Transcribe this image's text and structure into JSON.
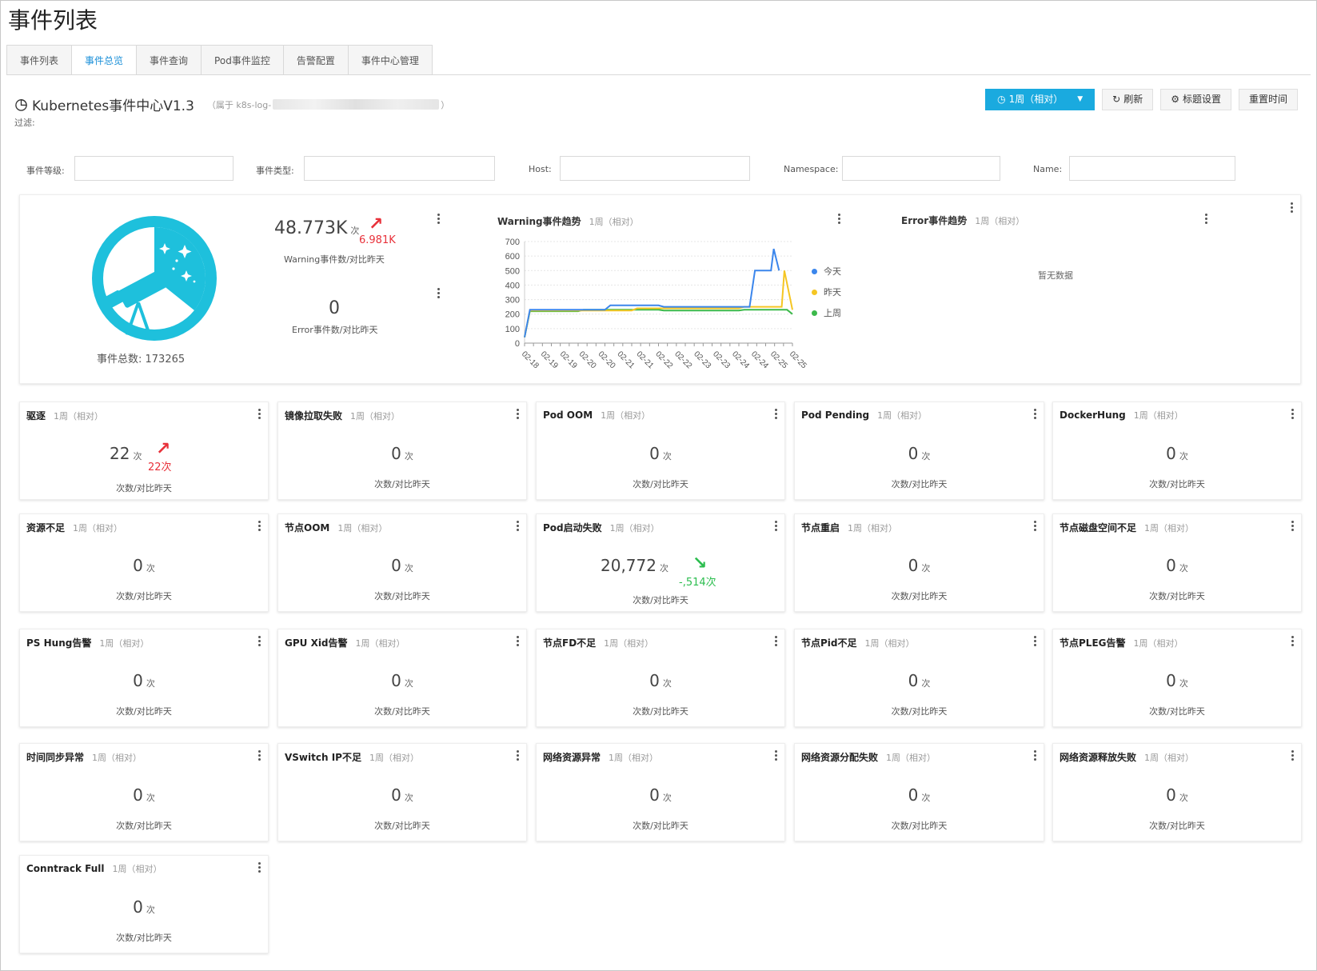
{
  "page_title": "事件列表",
  "tabs": [
    {
      "label": "事件列表",
      "active": false
    },
    {
      "label": "事件总览",
      "active": true
    },
    {
      "label": "事件查询",
      "active": false
    },
    {
      "label": "Pod事件监控",
      "active": false
    },
    {
      "label": "告警配置",
      "active": false
    },
    {
      "label": "事件中心管理",
      "active": false
    }
  ],
  "dashboard": {
    "title": "Kubernetes事件中心V1.3",
    "owner_prefix": "（属于 k8s-log-",
    "owner_suffix": "）",
    "filter_label": "过滤:"
  },
  "toolbar": {
    "time_label": "1周（相对）",
    "refresh_label": "刷新",
    "title_settings_label": "标题设置",
    "reset_time_label": "重置时间"
  },
  "filters": [
    {
      "label": "事件等级:",
      "value": ""
    },
    {
      "label": "事件类型:",
      "value": ""
    },
    {
      "label": "Host:",
      "value": ""
    },
    {
      "label": "Namespace:",
      "value": ""
    },
    {
      "label": "Name:",
      "value": ""
    }
  ],
  "overview": {
    "total_label": "事件总数: 173265",
    "warning_value": "48.773K",
    "warning_unit": "次",
    "warning_delta": "6.981K",
    "warning_caption": "Warning事件数/对比昨天",
    "error_value": "0",
    "error_caption": "Error事件数/对比昨天"
  },
  "warning_chart": {
    "title": "Warning事件趋势",
    "sub": "1周（相对）",
    "legend": [
      {
        "name": "今天",
        "color": "#3b86ec"
      },
      {
        "name": "昨天",
        "color": "#f5c623"
      },
      {
        "name": "上周",
        "color": "#3cb94b"
      }
    ]
  },
  "error_chart": {
    "title": "Error事件趋势",
    "sub": "1周（相对）",
    "empty_text": "暂无数据"
  },
  "chart_data": {
    "type": "line",
    "title": "Warning事件趋势",
    "ylim": [
      0,
      700
    ],
    "yticks": [
      700,
      600,
      500,
      400,
      300,
      200,
      100,
      0
    ],
    "xticks": [
      "02-18",
      "02-19",
      "02-19",
      "02-20",
      "02-20",
      "02-21",
      "02-21",
      "02-22",
      "02-22",
      "02-23",
      "02-23",
      "02-24",
      "02-24",
      "02-25",
      "02-25"
    ],
    "grid": true,
    "legend_position": "right",
    "series": [
      {
        "name": "今天",
        "color": "#3b86ec",
        "x": [
          0,
          0.02,
          0.3,
          0.32,
          0.5,
          0.52,
          0.84,
          0.86,
          0.92,
          0.93,
          0.95
        ],
        "values": [
          40,
          230,
          230,
          260,
          260,
          250,
          250,
          500,
          500,
          650,
          500
        ]
      },
      {
        "name": "昨天",
        "color": "#f5c623",
        "x": [
          0,
          0.02,
          0.4,
          0.42,
          0.8,
          0.82,
          0.96,
          0.97,
          1.0
        ],
        "values": [
          40,
          225,
          225,
          240,
          240,
          250,
          250,
          500,
          230
        ]
      },
      {
        "name": "上周",
        "color": "#3cb94b",
        "x": [
          0,
          0.02,
          0.2,
          0.22,
          0.5,
          0.52,
          0.8,
          0.82,
          0.98,
          1.0
        ],
        "values": [
          40,
          220,
          220,
          230,
          230,
          225,
          225,
          230,
          230,
          200
        ]
      }
    ]
  },
  "cards": [
    {
      "title": "驱逐",
      "sub": "1周（相对）",
      "value": "22",
      "unit": "次",
      "caption": "次数/对比昨天",
      "delta": "22次",
      "dir": "up"
    },
    {
      "title": "镜像拉取失败",
      "sub": "1周（相对）",
      "value": "0",
      "unit": "次",
      "caption": "次数/对比昨天"
    },
    {
      "title": "Pod OOM",
      "sub": "1周（相对）",
      "value": "0",
      "unit": "次",
      "caption": "次数/对比昨天"
    },
    {
      "title": "Pod Pending",
      "sub": "1周（相对）",
      "value": "0",
      "unit": "次",
      "caption": "次数/对比昨天"
    },
    {
      "title": "DockerHung",
      "sub": "1周（相对）",
      "value": "0",
      "unit": "次",
      "caption": "次数/对比昨天"
    },
    {
      "title": "资源不足",
      "sub": "1周（相对）",
      "value": "0",
      "unit": "次",
      "caption": "次数/对比昨天"
    },
    {
      "title": "节点OOM",
      "sub": "1周（相对）",
      "value": "0",
      "unit": "次",
      "caption": "次数/对比昨天"
    },
    {
      "title": "Pod启动失败",
      "sub": "1周（相对）",
      "value": "20,772",
      "unit": "次",
      "caption": "次数/对比昨天",
      "delta": "-,514次",
      "dir": "down"
    },
    {
      "title": "节点重启",
      "sub": "1周（相对）",
      "value": "0",
      "unit": "次",
      "caption": "次数/对比昨天"
    },
    {
      "title": "节点磁盘空间不足",
      "sub": "1周（相对）",
      "value": "0",
      "unit": "次",
      "caption": "次数/对比昨天"
    },
    {
      "title": "PS Hung告警",
      "sub": "1周（相对）",
      "value": "0",
      "unit": "次",
      "caption": "次数/对比昨天"
    },
    {
      "title": "GPU Xid告警",
      "sub": "1周（相对）",
      "value": "0",
      "unit": "次",
      "caption": "次数/对比昨天"
    },
    {
      "title": "节点FD不足",
      "sub": "1周（相对）",
      "value": "0",
      "unit": "次",
      "caption": "次数/对比昨天"
    },
    {
      "title": "节点Pid不足",
      "sub": "1周（相对）",
      "value": "0",
      "unit": "次",
      "caption": "次数/对比昨天"
    },
    {
      "title": "节点PLEG告警",
      "sub": "1周（相对）",
      "value": "0",
      "unit": "次",
      "caption": "次数/对比昨天"
    },
    {
      "title": "时间同步异常",
      "sub": "1周（相对）",
      "value": "0",
      "unit": "次",
      "caption": "次数/对比昨天"
    },
    {
      "title": "VSwitch IP不足",
      "sub": "1周（相对）",
      "value": "0",
      "unit": "次",
      "caption": "次数/对比昨天"
    },
    {
      "title": "网络资源异常",
      "sub": "1周（相对）",
      "value": "0",
      "unit": "次",
      "caption": "次数/对比昨天"
    },
    {
      "title": "网络资源分配失败",
      "sub": "1周（相对）",
      "value": "0",
      "unit": "次",
      "caption": "次数/对比昨天"
    },
    {
      "title": "网络资源释放失败",
      "sub": "1周（相对）",
      "value": "0",
      "unit": "次",
      "caption": "次数/对比昨天"
    },
    {
      "title": "Conntrack Full",
      "sub": "1周（相对）",
      "value": "0",
      "unit": "次",
      "caption": "次数/对比昨天"
    }
  ]
}
